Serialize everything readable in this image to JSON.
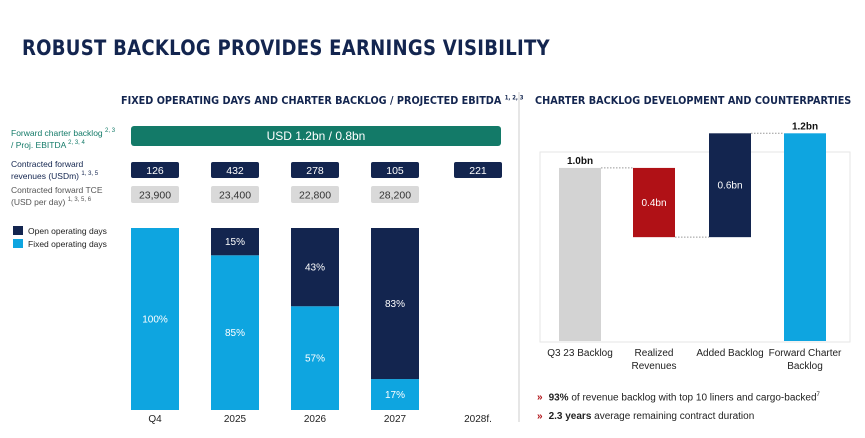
{
  "title": "ROBUST BACKLOG PROVIDES EARNINGS VISIBILITY",
  "rows": {
    "backlog": {
      "label": "Forward charter backlog",
      "label_sup": "2, 3",
      "label2": "/ Proj. EBITDA",
      "label2_sup": "2, 3, 4",
      "banner": "USD 1.2bn / 0.8bn"
    },
    "revenues": {
      "label": "Contracted forward revenues (USDm)",
      "label_sup": "1, 3, 5",
      "values": [
        "126",
        "432",
        "278",
        "105",
        "221"
      ]
    },
    "tce": {
      "label": "Contracted forward TCE (USD per day)",
      "label_sup": "1, 3, 5, 6",
      "values": [
        "23,900",
        "23,400",
        "22,800",
        "28,200"
      ]
    }
  },
  "chart_data": [
    {
      "type": "stacked_bar",
      "title": "FIXED OPERATING DAYS AND CHARTER BACKLOG / PROJECTED EBITDA",
      "title_sup": "1, 2, 3",
      "categories": [
        "Q4",
        "2025",
        "2026",
        "2027",
        "2028f."
      ],
      "series": [
        {
          "name": "Fixed operating days",
          "color": "#0ea5e0",
          "values": [
            100,
            85,
            57,
            17,
            null
          ],
          "value_labels": [
            "100%",
            "85%",
            "57%",
            "17%",
            null
          ]
        },
        {
          "name": "Open operating days",
          "color": "#13254f",
          "values": [
            0,
            15,
            43,
            83,
            null
          ],
          "value_labels": [
            null,
            "15%",
            "43%",
            "83%",
            null
          ]
        }
      ],
      "ylim": [
        0,
        100
      ],
      "legend": "top-left"
    },
    {
      "type": "waterfall",
      "title": "CHARTER BACKLOG DEVELOPMENT AND COUNTERPARTIES",
      "categories": [
        "Q3 23 Backlog",
        "Realized Revenues",
        "Added Backlog",
        "Forward Charter Backlog"
      ],
      "values": [
        1.0,
        -0.4,
        0.6,
        1.2
      ],
      "value_labels": [
        "1.0bn",
        "0.4bn",
        "0.6bn",
        "1.2bn"
      ],
      "measure": [
        "total",
        "relative",
        "relative",
        "total"
      ],
      "colors": [
        "#d3d3d3",
        "#b01116",
        "#13254f",
        "#0ea5e0"
      ],
      "ylim": [
        0,
        1.3
      ]
    }
  ],
  "bullets": [
    {
      "bold": "93%",
      "text": " of revenue backlog with top 10 liners and cargo-backed",
      "sup": "7"
    },
    {
      "bold": "2.3 years",
      "text": " average remaining contract duration"
    }
  ]
}
